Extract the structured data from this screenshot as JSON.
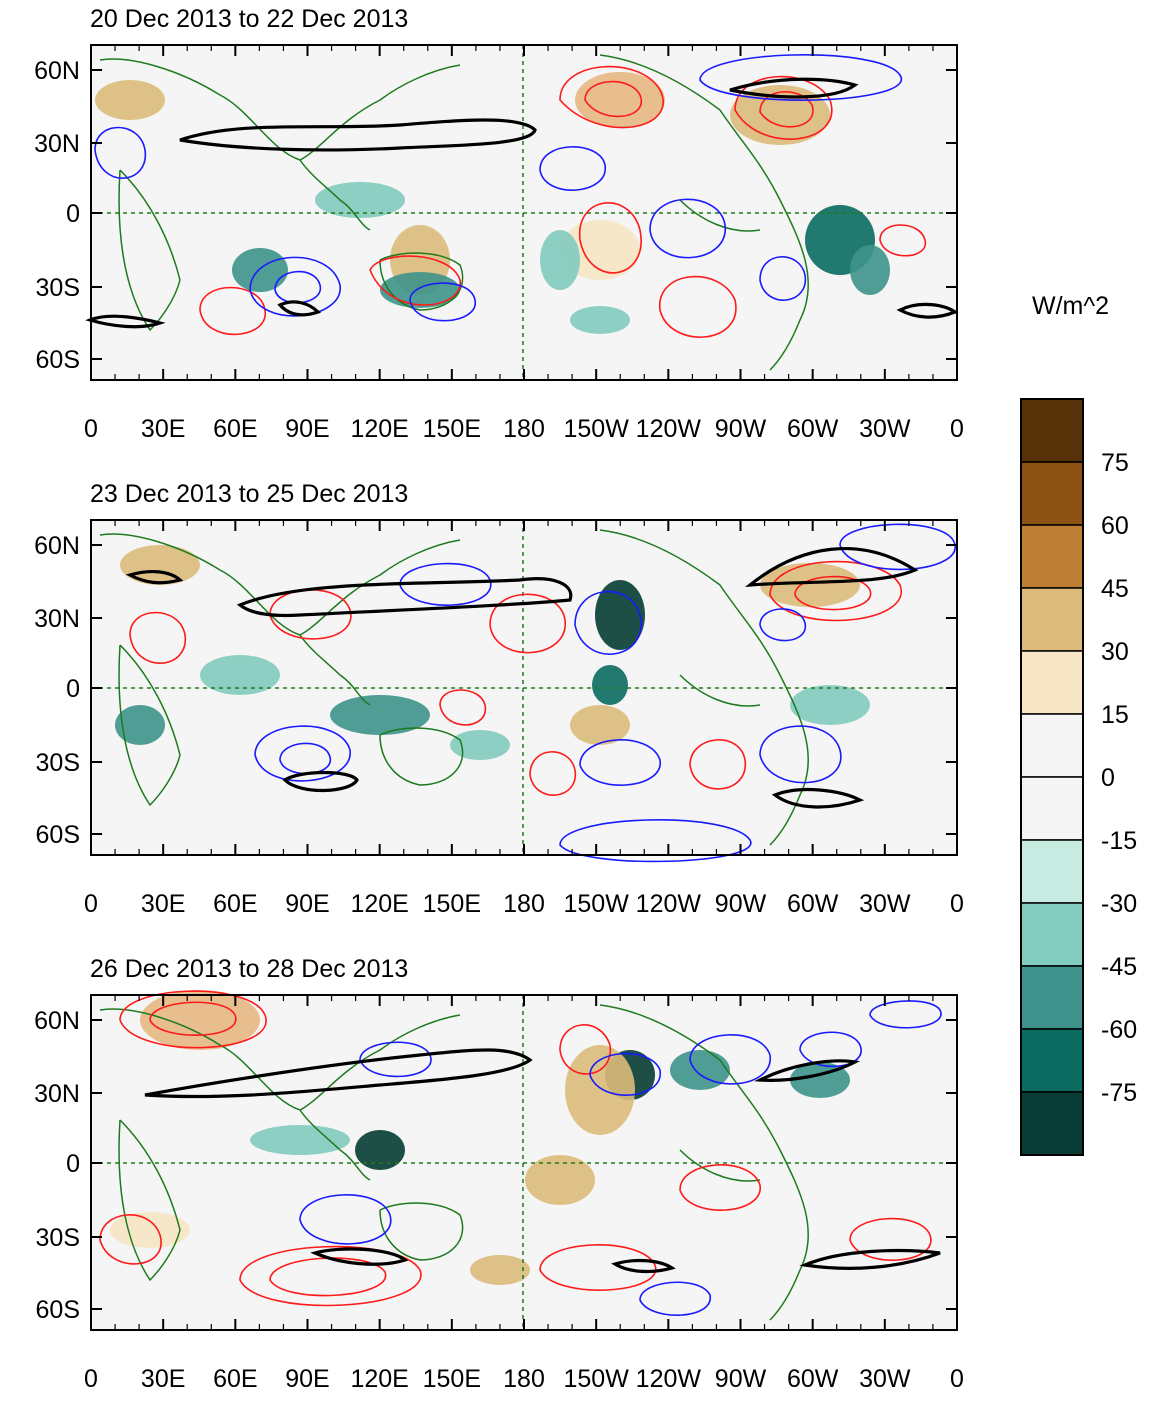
{
  "figure": {
    "panels": [
      {
        "title": "20 Dec 2013 to 22 Dec 2013"
      },
      {
        "title": "23 Dec 2013 to 25 Dec 2013"
      },
      {
        "title": "26 Dec 2013 to 28 Dec 2013"
      }
    ],
    "lat_ticks": [
      "60N",
      "30N",
      "0",
      "30S",
      "60S"
    ],
    "lon_ticks": [
      "0",
      "30E",
      "60E",
      "90E",
      "120E",
      "150E",
      "180",
      "150W",
      "120W",
      "90W",
      "60W",
      "30W",
      "0"
    ],
    "colorbar": {
      "units": "W/m^2",
      "labels": [
        "75",
        "60",
        "45",
        "30",
        "15",
        "0",
        "-15",
        "-30",
        "-45",
        "-60",
        "-75"
      ],
      "colors": [
        "#573208",
        "#8b5212",
        "#be7e35",
        "#dcbb7a",
        "#f6e6c4",
        "#f5f5f5",
        "#f5f5f5",
        "#c8ebe1",
        "#83cbbf",
        "#3d938b",
        "#0b6b60",
        "#073d34"
      ]
    },
    "colors": {
      "positive_contour": "#ff1a1a",
      "negative_contour": "#1a1aff",
      "jet_contour": "#000000",
      "coastline": "#1e7a1e",
      "reference_line": "#1e7a1e"
    }
  }
}
